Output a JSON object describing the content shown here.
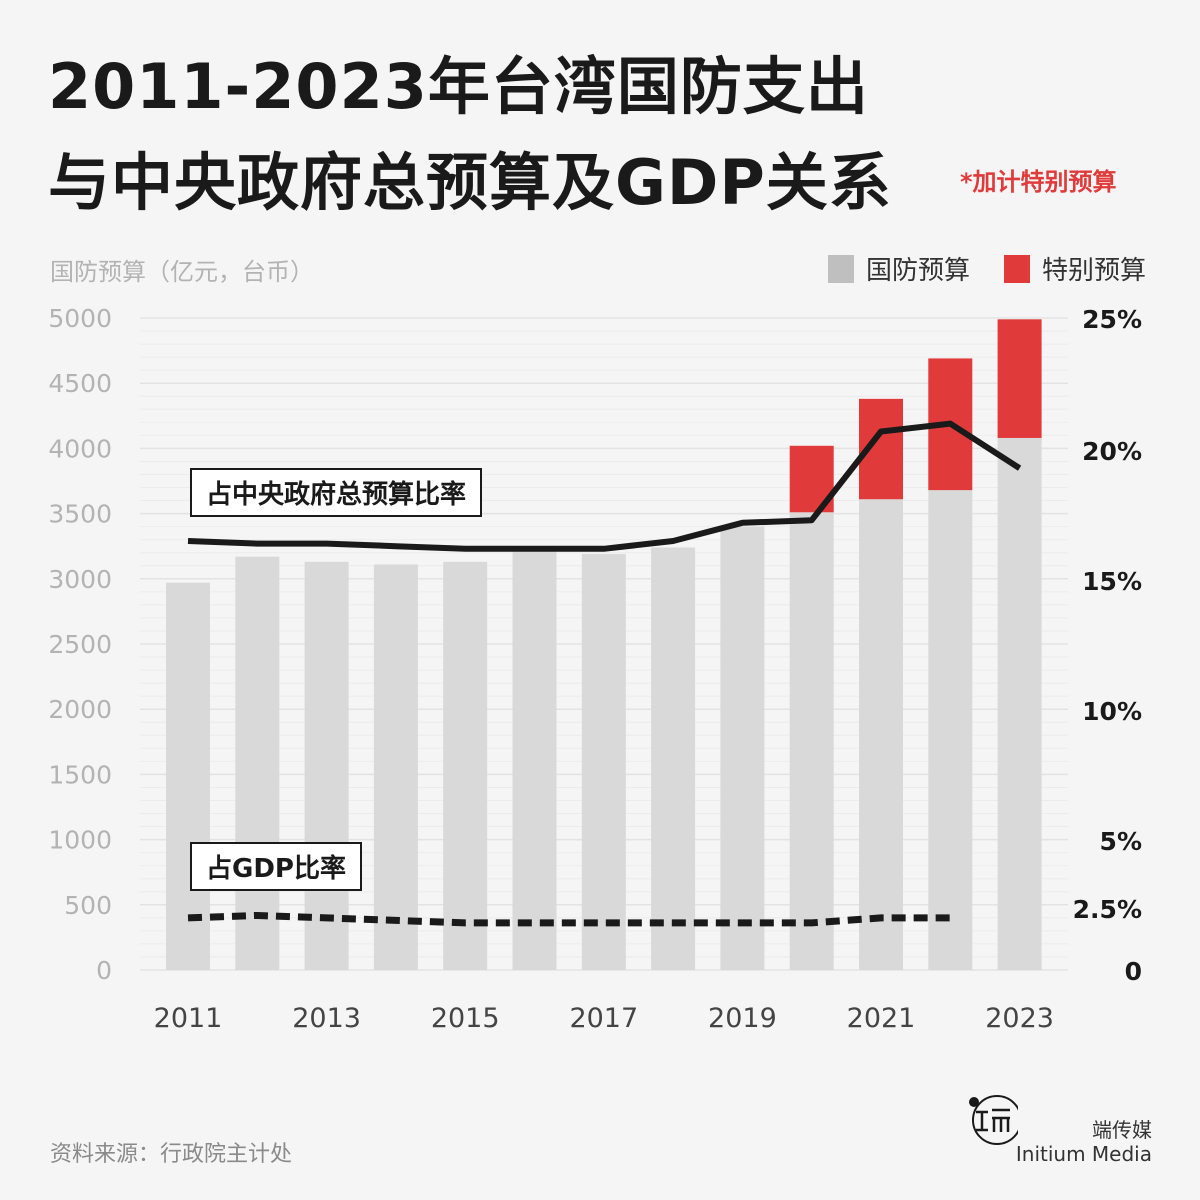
{
  "title": {
    "line1": "2011-2023年台湾国防支出",
    "line2": "与中央政府总预算及GDP关系",
    "note": "*加计特别预算"
  },
  "y_axis_label": "国防预算（亿元，台币）",
  "legend": [
    {
      "label": "国防预算",
      "color": "#bfbfbf"
    },
    {
      "label": "特别预算",
      "color": "#e03a3a"
    }
  ],
  "annotations": {
    "budget_ratio": "占中央政府总预算比率",
    "gdp_ratio": "占GDP比率"
  },
  "source": "资料来源：行政院主计处",
  "brand": {
    "cn": "端传媒",
    "en": "Initium Media"
  },
  "chart_data": {
    "type": "bar",
    "categories": [
      "2011",
      "2012",
      "2013",
      "2014",
      "2015",
      "2016",
      "2017",
      "2018",
      "2019",
      "2020",
      "2021",
      "2022",
      "2023"
    ],
    "x_tick_labels": [
      "2011",
      "",
      "2013",
      "",
      "2015",
      "",
      "2017",
      "",
      "2019",
      "",
      "2021",
      "",
      "2023"
    ],
    "series": [
      {
        "name": "国防预算",
        "values": [
          2970,
          3170,
          3130,
          3110,
          3130,
          3220,
          3190,
          3240,
          3400,
          3510,
          3610,
          3680,
          4080
        ],
        "color": "#d9d9d9"
      },
      {
        "name": "特别预算",
        "values": [
          0,
          0,
          0,
          0,
          0,
          0,
          0,
          0,
          0,
          510,
          770,
          1010,
          910
        ],
        "color": "#e03a3a"
      }
    ],
    "lines": [
      {
        "name": "占中央政府总预算比率",
        "style": "solid",
        "axis": "right",
        "values": [
          16.5,
          16.4,
          16.4,
          16.3,
          16.2,
          16.2,
          16.2,
          16.5,
          17.2,
          17.3,
          20.7,
          21.0,
          19.3
        ]
      },
      {
        "name": "占GDP比率",
        "style": "dashed",
        "axis": "right",
        "values": [
          2.1,
          2.2,
          2.1,
          2.0,
          1.9,
          1.9,
          1.9,
          1.9,
          1.9,
          1.9,
          2.1,
          2.1,
          null
        ]
      }
    ],
    "left_axis": {
      "ticks": [
        "0",
        "500",
        "1000",
        "1500",
        "2000",
        "2500",
        "3000",
        "3500",
        "4000",
        "4500",
        "5000"
      ],
      "ylim": [
        0,
        5000
      ]
    },
    "right_axis": {
      "ticks": [
        "0",
        "2.5%",
        "5%",
        "10%",
        "15%",
        "20%",
        "25%"
      ],
      "values": [
        0,
        2.5,
        5,
        10,
        15,
        20,
        25
      ],
      "ylim": [
        0,
        25
      ]
    },
    "grid": true,
    "legend_position": "top-right"
  }
}
